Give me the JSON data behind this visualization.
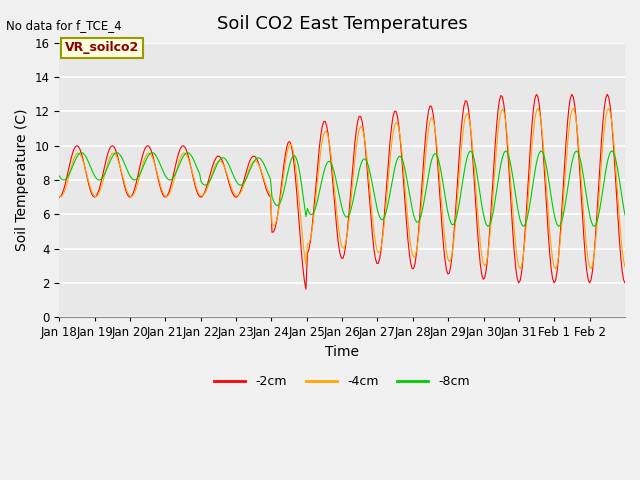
{
  "title": "Soil CO2 East Temperatures",
  "xlabel": "Time",
  "ylabel": "Soil Temperature (C)",
  "no_data_text": "No data for f_TCE_4",
  "legend_label_text": "VR_soilco2",
  "ylim": [
    0,
    16
  ],
  "yticks": [
    0,
    2,
    4,
    6,
    8,
    10,
    12,
    14,
    16
  ],
  "xtick_labels": [
    "Jan 18",
    "Jan 19",
    "Jan 20",
    "Jan 21",
    "Jan 22",
    "Jan 23",
    "Jan 24",
    "Jan 25",
    "Jan 26",
    "Jan 27",
    "Jan 28",
    "Jan 29",
    "Jan 30",
    "Jan 31",
    "Feb 1",
    "Feb 2"
  ],
  "line_colors": [
    "#ff0000",
    "#ffa500",
    "#00cc00"
  ],
  "line_labels": [
    "-2cm",
    "-4cm",
    "-8cm"
  ],
  "plot_bg_color": "#e8e8e8",
  "fig_bg_color": "#f0f0f0",
  "title_fontsize": 13,
  "axis_label_fontsize": 10,
  "tick_fontsize": 8.5
}
